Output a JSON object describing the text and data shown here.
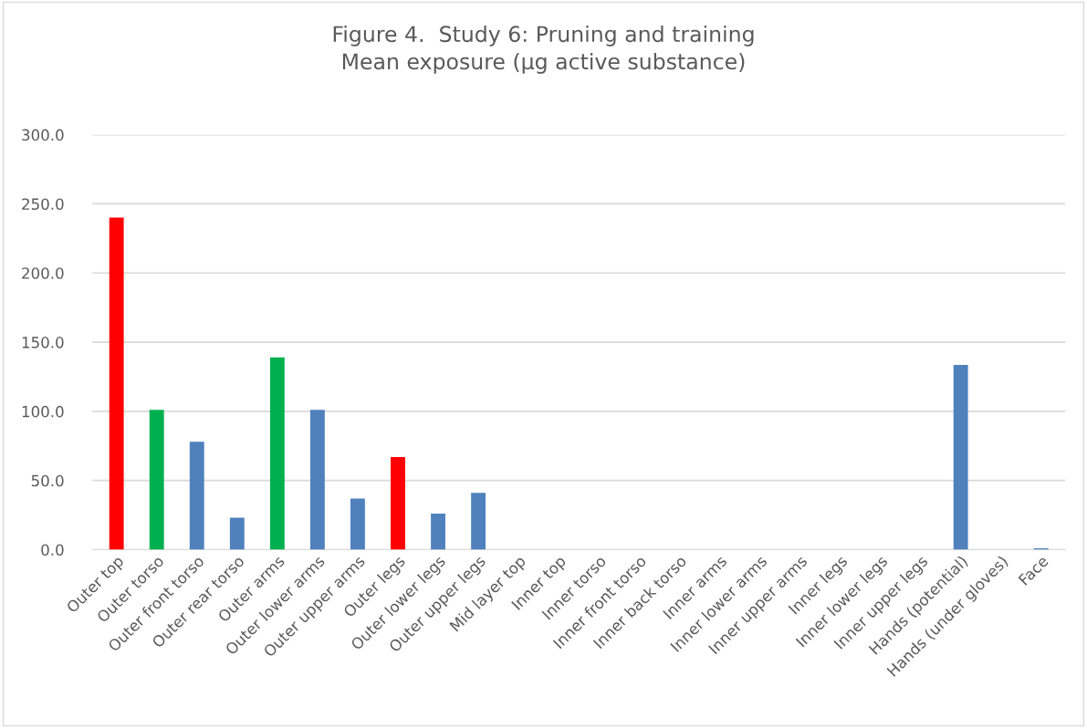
{
  "chart_data": {
    "type": "bar",
    "title": "Figure 4.  Study 6: Pruning and training\nMean exposure (µg active substance)",
    "categories": [
      "Outer top",
      "Outer torso",
      "Outer front torso",
      "Outer rear torso",
      "Outer arms",
      "Outer lower arms",
      "Outer upper arms",
      "Outer legs",
      "Outer lower legs",
      "Outer upper legs",
      "Mid layer top",
      "Inner top",
      "Inner torso",
      "Inner front torso",
      "Inner back torso",
      "Inner arms",
      "Inner lower arms",
      "Inner upper arms",
      "Inner legs",
      "Inner lower legs",
      "Inner upper legs",
      "Hands (potential)",
      "Hands (under gloves)",
      "Face"
    ],
    "values": [
      240,
      101,
      78,
      23,
      139,
      101,
      37,
      67,
      26,
      41,
      0,
      0,
      0,
      0,
      0,
      0,
      0,
      0,
      0,
      0,
      0,
      133.5,
      0,
      1
    ],
    "colors": [
      "#ff0000",
      "#00b050",
      "#4f81bd",
      "#4f81bd",
      "#00b050",
      "#4f81bd",
      "#4f81bd",
      "#ff0000",
      "#4f81bd",
      "#4f81bd",
      "#4f81bd",
      "#4f81bd",
      "#4f81bd",
      "#4f81bd",
      "#4f81bd",
      "#4f81bd",
      "#4f81bd",
      "#4f81bd",
      "#4f81bd",
      "#4f81bd",
      "#4f81bd",
      "#4f81bd",
      "#4f81bd",
      "#4f81bd"
    ],
    "ylim": [
      0,
      300
    ],
    "yticks": [
      {
        "value": 0,
        "label": "0.0"
      },
      {
        "value": 50,
        "label": "50.0"
      },
      {
        "value": 100,
        "label": "100.0"
      },
      {
        "value": 150,
        "label": "150.0"
      },
      {
        "value": 200,
        "label": "200.0"
      },
      {
        "value": 250,
        "label": "250.0"
      },
      {
        "value": 300,
        "label": "300.0"
      }
    ],
    "grid": "y",
    "legend": false
  }
}
